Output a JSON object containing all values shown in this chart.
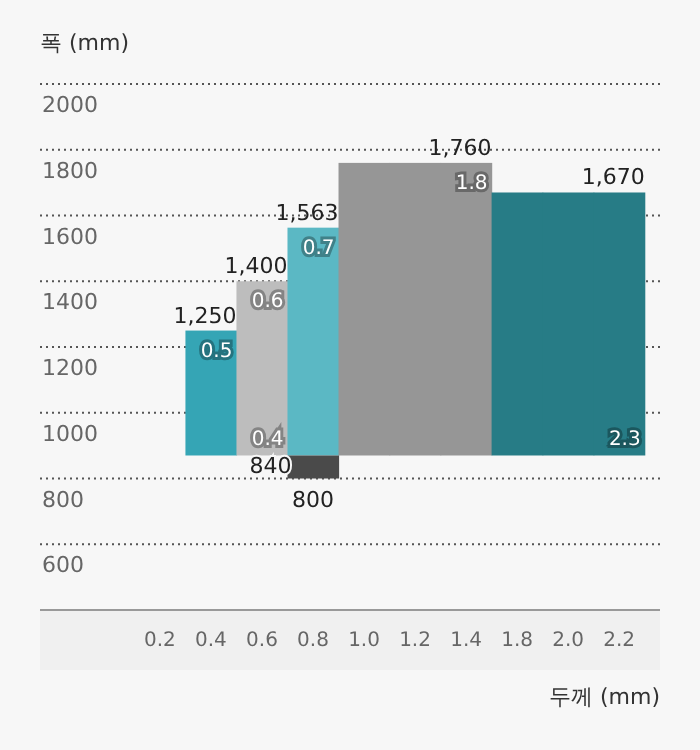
{
  "chart_data": {
    "type": "bar",
    "xlabel": "두께 (mm)",
    "ylabel": "폭 (mm)",
    "categories": [
      "0.2",
      "0.4",
      "0.6",
      "0.8",
      "1.0",
      "1.2",
      "1.4",
      "1.8",
      "2.0",
      "2.2"
    ],
    "ylim": [
      400,
      2000
    ],
    "yticks": [
      600,
      800,
      1000,
      1200,
      1400,
      1600,
      1800,
      2000
    ],
    "grid": "y",
    "series": [
      {
        "color": "#35a5b5",
        "values": [
          null,
          380,
          null,
          null,
          null,
          null,
          null,
          null,
          null,
          null
        ],
        "base": [
          null,
          870,
          null,
          null,
          null,
          null,
          null,
          null,
          null,
          null
        ],
        "value_labels": [
          null,
          "1,250",
          null,
          null,
          null,
          null,
          null,
          null,
          null,
          null
        ]
      },
      {
        "color": "#bdbdbd",
        "values": [
          null,
          null,
          530,
          null,
          null,
          null,
          null,
          null,
          null,
          null
        ],
        "base": [
          null,
          null,
          870,
          null,
          null,
          null,
          null,
          null,
          null,
          null
        ],
        "value_labels": [
          null,
          null,
          "1,400",
          null,
          null,
          null,
          null,
          null,
          null,
          null
        ]
      },
      {
        "color": "#5bb8c4",
        "values": [
          null,
          null,
          null,
          693,
          null,
          null,
          null,
          null,
          null,
          null
        ],
        "base": [
          null,
          null,
          null,
          870,
          null,
          null,
          null,
          null,
          null,
          null
        ],
        "value_labels": [
          null,
          null,
          null,
          "1,563",
          null,
          null,
          null,
          null,
          null,
          null
        ]
      },
      {
        "color": "#969696",
        "values": [
          null,
          null,
          null,
          null,
          890,
          890,
          890,
          null,
          null,
          null
        ],
        "base": [
          null,
          null,
          null,
          null,
          870,
          870,
          870,
          null,
          null,
          null
        ],
        "value_labels": [
          null,
          null,
          null,
          null,
          null,
          null,
          "1,760",
          null,
          null,
          null
        ]
      },
      {
        "color": "#277c86",
        "values": [
          null,
          null,
          null,
          null,
          null,
          null,
          null,
          800,
          800,
          800
        ],
        "base": [
          null,
          null,
          null,
          null,
          null,
          null,
          null,
          870,
          870,
          870
        ],
        "value_labels": [
          null,
          null,
          null,
          null,
          null,
          null,
          null,
          null,
          null,
          "1,670"
        ]
      },
      {
        "color": "#4a4a4a",
        "values": [
          null,
          null,
          null,
          70,
          null,
          null,
          null,
          null,
          null,
          null
        ],
        "base": [
          null,
          null,
          null,
          800,
          null,
          null,
          null,
          null,
          null,
          null
        ]
      }
    ],
    "annotations": [
      {
        "text": "0.5",
        "x": "0.4",
        "y": 1250
      },
      {
        "text": "0.4",
        "x": "0.6",
        "y": 870
      },
      {
        "text": "0.6",
        "x": "0.6",
        "y": 1400
      },
      {
        "text": "0.7",
        "x": "0.8",
        "y": 1563
      },
      {
        "text": "1.8",
        "x": "1.4",
        "y": 1760
      },
      {
        "text": "2.3",
        "x": "2.2",
        "y": 870
      },
      {
        "text": "840",
        "x": "0.8",
        "y": 840
      },
      {
        "text": "800",
        "x": "0.8",
        "y": 800
      }
    ]
  }
}
